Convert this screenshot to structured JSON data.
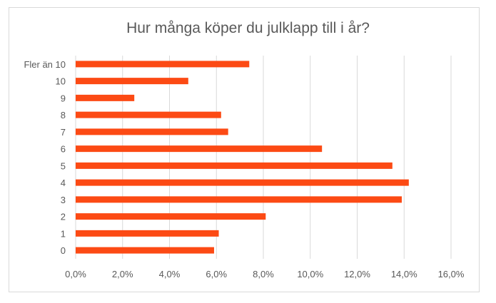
{
  "chart_data": {
    "type": "bar",
    "orientation": "horizontal",
    "title": "Hur många köper du julklapp till i år?",
    "xlabel": "",
    "ylabel": "",
    "categories": [
      "0",
      "1",
      "2",
      "3",
      "4",
      "5",
      "6",
      "7",
      "8",
      "9",
      "10",
      "Fler än 10"
    ],
    "values": [
      5.9,
      6.1,
      8.1,
      13.9,
      14.2,
      13.5,
      10.5,
      6.5,
      6.2,
      2.5,
      4.8,
      7.4
    ],
    "xlim": [
      0,
      16
    ],
    "x_ticks": [
      "0,0%",
      "2,0%",
      "4,0%",
      "6,0%",
      "8,0%",
      "10,0%",
      "12,0%",
      "14,0%",
      "16,0%"
    ],
    "grid": true,
    "legend": "none",
    "bar_color": "#fc4a14",
    "grid_color": "#d9d9d9"
  }
}
